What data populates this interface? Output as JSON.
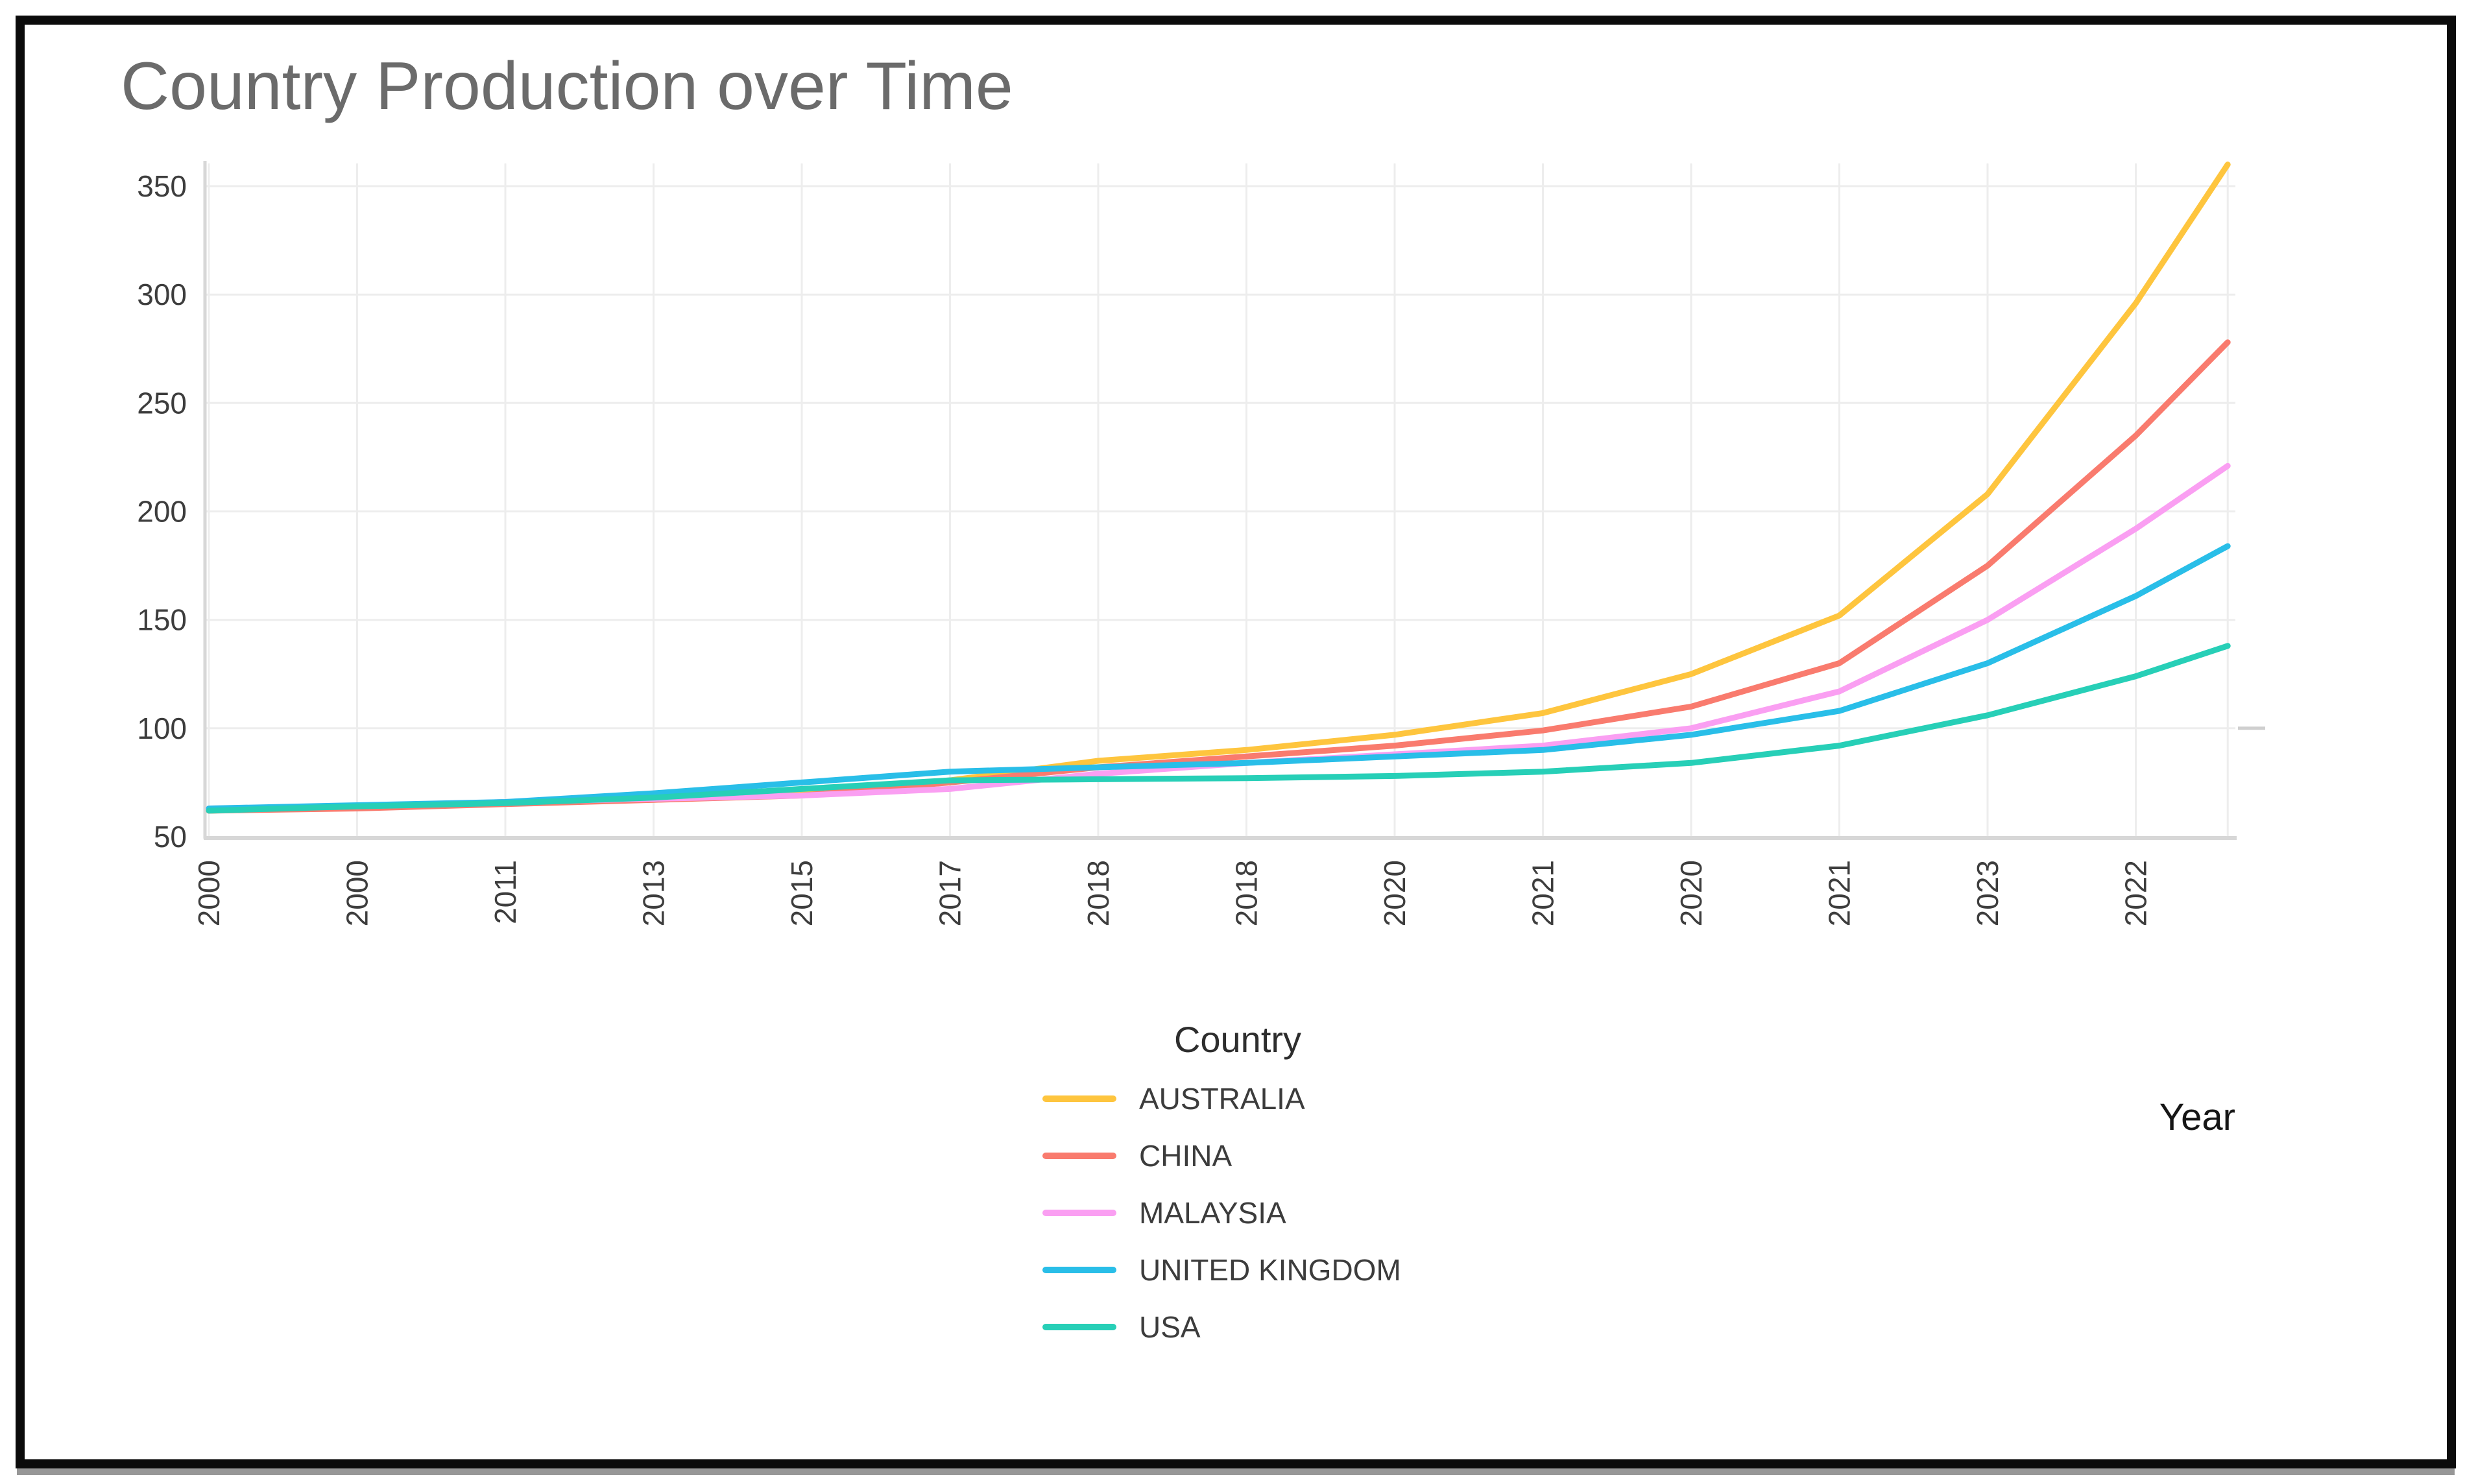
{
  "chart_data": {
    "type": "line",
    "title": "Country Production over Time",
    "xlabel": "Year",
    "ylabel": "",
    "y_ticks": [
      350,
      300,
      250,
      200,
      150,
      100,
      50
    ],
    "ylim": [
      50,
      370
    ],
    "x_tick_labels": [
      "2000",
      "2000",
      "2011",
      "2013",
      "2015",
      "2017",
      "2018",
      "2018",
      "2020",
      "2021",
      "2020",
      "2021",
      "2023",
      "2022"
    ],
    "x_positions": [
      0,
      1,
      2,
      3,
      4,
      5,
      6,
      7,
      8,
      9,
      10,
      11,
      12,
      13,
      13.62
    ],
    "legend": {
      "title": "Country"
    },
    "series": [
      {
        "name": "AUSTRALIA",
        "color": "#FEC53E",
        "values": [
          62,
          63.5,
          66,
          68,
          70,
          76,
          85,
          90,
          97,
          107,
          125,
          152,
          208,
          296,
          360
        ]
      },
      {
        "name": "CHINA",
        "color": "#F97B6E",
        "values": [
          62,
          63,
          65,
          67,
          69,
          75,
          82,
          87,
          92,
          99,
          110,
          130,
          175,
          235,
          278
        ]
      },
      {
        "name": "MALAYSIA",
        "color": "#FA9FF2",
        "values": [
          63,
          64,
          66,
          67.5,
          69,
          72,
          79,
          84,
          88,
          92,
          100,
          117,
          150,
          192,
          221
        ]
      },
      {
        "name": "UNITED KINGDOM",
        "color": "#29BEE8",
        "values": [
          63,
          64.5,
          66,
          70,
          75,
          80,
          82,
          84,
          87,
          90,
          97,
          108,
          130,
          161,
          184
        ]
      },
      {
        "name": "USA",
        "color": "#27CFB7",
        "values": [
          62,
          64,
          65.5,
          68,
          72,
          76,
          76.5,
          77,
          78,
          80,
          84,
          92,
          106,
          124,
          138
        ]
      }
    ],
    "layout_hints": {
      "grid": true,
      "legend_position": "bottom-center",
      "x_tick_rotation": -90,
      "lines_extend_past_last_tick": true,
      "grid_color": "#ededed",
      "spine_color": "#d7d7d7",
      "tick_label_color": "#3d3d3d",
      "title_color": "#6b6b6b"
    }
  }
}
